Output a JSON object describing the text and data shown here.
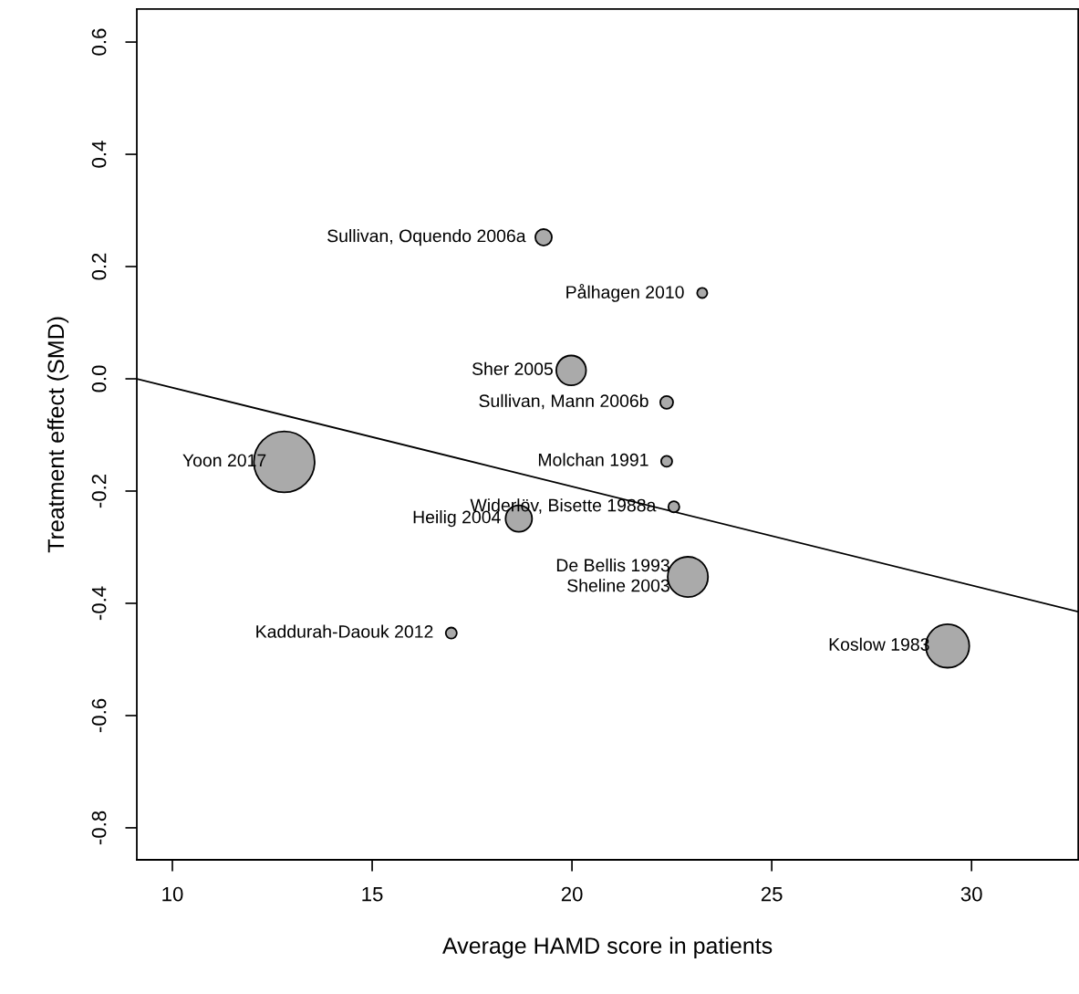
{
  "chart_data": {
    "type": "bubble",
    "xlabel": "Average HAMD score in patients",
    "ylabel": "Treatment effect (SMD)",
    "xlim": [
      9.11,
      32.67
    ],
    "ylim": [
      -0.857,
      0.659
    ],
    "xticks": [
      10,
      15,
      20,
      25,
      30
    ],
    "yticks": [
      -0.8,
      -0.6,
      -0.4,
      -0.2,
      {
        "value": 0,
        "label": "0.0"
      },
      0.2,
      0.4,
      0.6
    ],
    "grid": false,
    "series": [
      {
        "color": "#aaaaaa",
        "marker": "circle",
        "x": [
          19.29,
          23.26,
          19.98,
          22.37,
          22.37,
          22.55,
          18.67,
          12.8,
          22.9,
          null,
          16.98,
          29.4
        ],
        "values": [
          0.252,
          0.153,
          0.015,
          -0.042,
          -0.147,
          -0.228,
          -0.249,
          -0.148,
          -0.353,
          null,
          -0.453,
          -0.476
        ],
        "sizes": [
          0.074,
          0.028,
          0.24,
          0.045,
          0.033,
          0.033,
          0.19,
          1,
          0.44,
          null,
          0.033,
          0.51
        ]
      },
      {
        "type": "line",
        "color": "#000000",
        "line_style": "solid",
        "marker": "none",
        "x": [
          9.11,
          32.67
        ],
        "values": [
          0.0,
          -0.415
        ]
      }
    ],
    "annotations": [
      {
        "text": "Sullivan, Oquendo 2006a",
        "x": 19.29,
        "y": 0.252
      },
      {
        "text": "Pålhagen 2010",
        "x": 23.26,
        "y": 0.153
      },
      {
        "text": "Sher 2005",
        "x": 19.98,
        "y": 0.015
      },
      {
        "text": "Sullivan, Mann 2006b",
        "x": 22.37,
        "y": -0.042
      },
      {
        "text": "Molchan 1991",
        "x": 22.37,
        "y": -0.147
      },
      {
        "text": "Widerlöv, Bisette 1988a",
        "x": 22.55,
        "y": -0.228
      },
      {
        "text": "Heilig 2004",
        "x": 18.67,
        "y": -0.249
      },
      {
        "text": "Yoon 2017",
        "x": 12.8,
        "y": -0.148
      },
      {
        "text": "De Bellis 1993",
        "x": 22.9,
        "y": -0.353
      },
      {
        "text": "Sheline 2003",
        "x": 22.9,
        "y": -0.353
      },
      {
        "text": "Kaddurah-Daouk 2012",
        "x": 16.98,
        "y": -0.453
      },
      {
        "text": "Koslow 1983",
        "x": 29.4,
        "y": -0.476
      }
    ]
  }
}
